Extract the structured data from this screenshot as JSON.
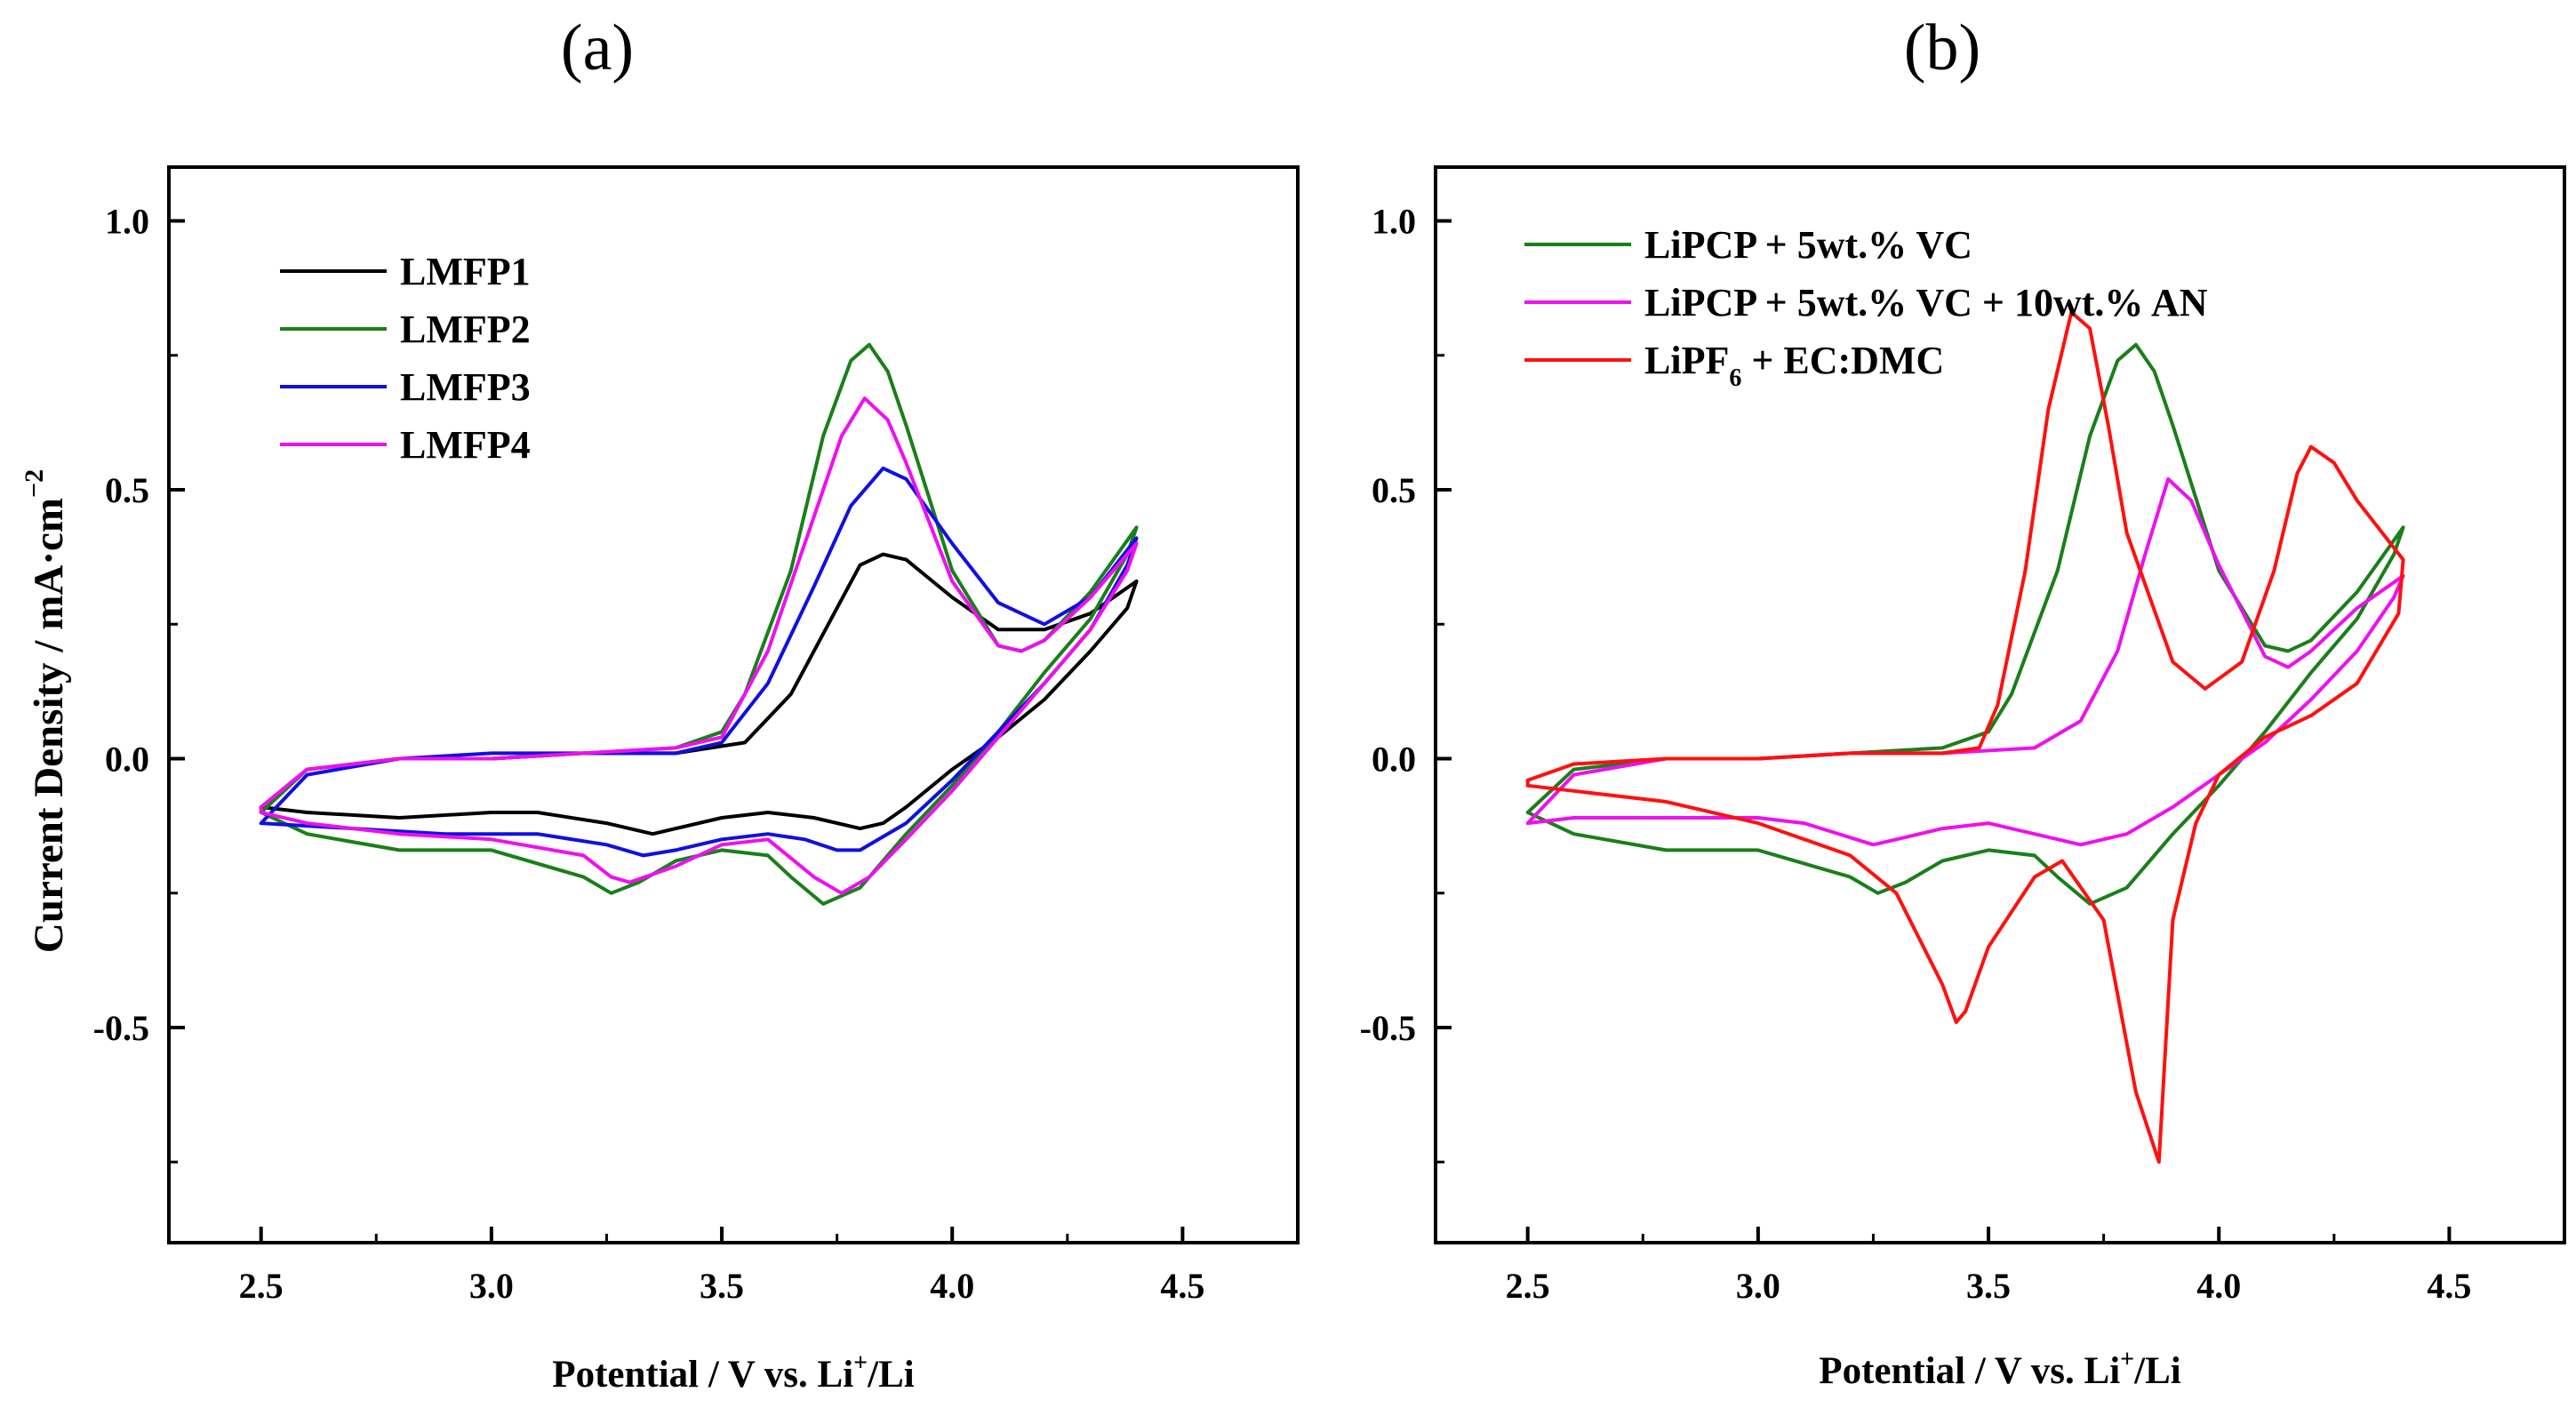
{
  "figure": {
    "ylabel": "Current Density  / mA·cm",
    "ylabel_sup": "−2"
  },
  "chart_data": [
    {
      "type": "line",
      "panel_label": "(a)",
      "xlabel_parts": [
        "Potential / V vs. Li",
        "+",
        "/Li"
      ],
      "xlim": [
        2.3,
        4.75
      ],
      "ylim": [
        -0.9,
        1.1
      ],
      "xticks": [
        2.5,
        3.0,
        3.5,
        4.0,
        4.5
      ],
      "xtick_labels": [
        "2.5",
        "3.0",
        "3.5",
        "4.0",
        "4.5"
      ],
      "yticks": [
        -0.5,
        0.0,
        0.5,
        1.0
      ],
      "ytick_labels": [
        "-0.5",
        "0.0",
        "0.5",
        "1.0"
      ],
      "legend_position": "top-left",
      "series": [
        {
          "name": "LMFP1",
          "color": "#000000",
          "x": [
            2.5,
            2.6,
            2.8,
            3.0,
            3.2,
            3.4,
            3.55,
            3.65,
            3.75,
            3.8,
            3.85,
            3.9,
            4.0,
            4.1,
            4.2,
            4.3,
            4.4,
            4.38,
            4.3,
            4.2,
            4.1,
            4.0,
            3.9,
            3.85,
            3.8,
            3.7,
            3.6,
            3.5,
            3.4,
            3.35,
            3.25,
            3.1,
            3.0,
            2.8,
            2.6,
            2.5
          ],
          "y": [
            -0.09,
            -0.02,
            0.0,
            0.0,
            0.01,
            0.01,
            0.03,
            0.12,
            0.28,
            0.36,
            0.38,
            0.37,
            0.3,
            0.24,
            0.24,
            0.27,
            0.33,
            0.28,
            0.2,
            0.11,
            0.04,
            -0.02,
            -0.09,
            -0.12,
            -0.13,
            -0.11,
            -0.1,
            -0.11,
            -0.13,
            -0.14,
            -0.12,
            -0.1,
            -0.1,
            -0.11,
            -0.1,
            -0.09
          ]
        },
        {
          "name": "LMFP2",
          "color": "#1a7f1a",
          "x": [
            2.5,
            2.6,
            2.8,
            3.0,
            3.2,
            3.4,
            3.5,
            3.55,
            3.65,
            3.72,
            3.78,
            3.82,
            3.86,
            3.9,
            4.0,
            4.1,
            4.15,
            4.2,
            4.3,
            4.4,
            4.38,
            4.3,
            4.2,
            4.1,
            4.0,
            3.9,
            3.8,
            3.72,
            3.65,
            3.6,
            3.5,
            3.4,
            3.32,
            3.26,
            3.2,
            3.0,
            2.8,
            2.6,
            2.5
          ],
          "y": [
            -0.1,
            -0.02,
            0.0,
            0.0,
            0.01,
            0.02,
            0.05,
            0.12,
            0.35,
            0.6,
            0.74,
            0.77,
            0.72,
            0.62,
            0.35,
            0.21,
            0.2,
            0.22,
            0.31,
            0.43,
            0.38,
            0.26,
            0.16,
            0.05,
            -0.05,
            -0.14,
            -0.24,
            -0.27,
            -0.22,
            -0.18,
            -0.17,
            -0.19,
            -0.23,
            -0.25,
            -0.22,
            -0.17,
            -0.17,
            -0.14,
            -0.1
          ]
        },
        {
          "name": "LMFP3",
          "color": "#1010e0",
          "x": [
            2.5,
            2.6,
            2.8,
            3.0,
            3.2,
            3.4,
            3.5,
            3.6,
            3.7,
            3.78,
            3.85,
            3.9,
            4.0,
            4.1,
            4.2,
            4.3,
            4.4,
            4.38,
            4.3,
            4.2,
            4.1,
            4.0,
            3.9,
            3.8,
            3.75,
            3.68,
            3.6,
            3.5,
            3.4,
            3.33,
            3.25,
            3.1,
            2.9,
            2.7,
            2.5
          ],
          "y": [
            -0.12,
            -0.03,
            0.0,
            0.01,
            0.01,
            0.01,
            0.03,
            0.14,
            0.32,
            0.47,
            0.54,
            0.52,
            0.4,
            0.29,
            0.25,
            0.3,
            0.41,
            0.36,
            0.24,
            0.14,
            0.05,
            -0.04,
            -0.12,
            -0.17,
            -0.17,
            -0.15,
            -0.14,
            -0.15,
            -0.17,
            -0.18,
            -0.16,
            -0.14,
            -0.14,
            -0.13,
            -0.12
          ]
        },
        {
          "name": "LMFP4",
          "color": "#ee10ee",
          "x": [
            2.5,
            2.6,
            2.8,
            3.0,
            3.2,
            3.4,
            3.5,
            3.6,
            3.7,
            3.76,
            3.81,
            3.86,
            3.9,
            4.0,
            4.1,
            4.15,
            4.2,
            4.3,
            4.4,
            4.38,
            4.3,
            4.2,
            4.1,
            4.0,
            3.9,
            3.82,
            3.76,
            3.7,
            3.6,
            3.5,
            3.4,
            3.3,
            3.26,
            3.2,
            3.0,
            2.8,
            2.6,
            2.5
          ],
          "y": [
            -0.09,
            -0.02,
            0.0,
            0.0,
            0.01,
            0.02,
            0.04,
            0.2,
            0.45,
            0.6,
            0.67,
            0.63,
            0.55,
            0.33,
            0.21,
            0.2,
            0.22,
            0.3,
            0.4,
            0.35,
            0.24,
            0.14,
            0.04,
            -0.06,
            -0.15,
            -0.22,
            -0.25,
            -0.22,
            -0.15,
            -0.16,
            -0.2,
            -0.23,
            -0.22,
            -0.18,
            -0.15,
            -0.14,
            -0.12,
            -0.1
          ]
        }
      ]
    },
    {
      "type": "line",
      "panel_label": "(b)",
      "xlabel_parts": [
        "Potential / V vs. Li",
        "+",
        "/Li"
      ],
      "xlim": [
        2.3,
        4.75
      ],
      "ylim": [
        -0.9,
        1.1
      ],
      "xticks": [
        2.5,
        3.0,
        3.5,
        4.0,
        4.5
      ],
      "xtick_labels": [
        "2.5",
        "3.0",
        "3.5",
        "4.0",
        "4.5"
      ],
      "yticks": [
        -0.5,
        0.0,
        0.5,
        1.0
      ],
      "ytick_labels": [
        "-0.5",
        "0.0",
        "0.5",
        "1.0"
      ],
      "legend_position": "top-left",
      "series": [
        {
          "name": "LiPCP + 5wt.% VC",
          "legend_parts": [
            "LiPCP + 5wt.% VC"
          ],
          "color": "#1a7f1a",
          "x": [
            2.5,
            2.6,
            2.8,
            3.0,
            3.2,
            3.4,
            3.5,
            3.55,
            3.65,
            3.72,
            3.78,
            3.82,
            3.86,
            3.9,
            4.0,
            4.1,
            4.15,
            4.2,
            4.3,
            4.4,
            4.38,
            4.3,
            4.2,
            4.1,
            4.0,
            3.9,
            3.8,
            3.72,
            3.65,
            3.6,
            3.5,
            3.4,
            3.32,
            3.26,
            3.2,
            3.0,
            2.8,
            2.6,
            2.5
          ],
          "y": [
            -0.1,
            -0.02,
            0.0,
            0.0,
            0.01,
            0.02,
            0.05,
            0.12,
            0.35,
            0.6,
            0.74,
            0.77,
            0.72,
            0.62,
            0.35,
            0.21,
            0.2,
            0.22,
            0.31,
            0.43,
            0.38,
            0.26,
            0.16,
            0.05,
            -0.05,
            -0.14,
            -0.24,
            -0.27,
            -0.22,
            -0.18,
            -0.17,
            -0.19,
            -0.23,
            -0.25,
            -0.22,
            -0.17,
            -0.17,
            -0.14,
            -0.1
          ]
        },
        {
          "name": "LiPCP + 5wt.% VC + 10wt.% AN",
          "legend_parts": [
            "LiPCP + 5wt.% VC + 10wt.% AN"
          ],
          "color": "#ee10ee",
          "x": [
            2.5,
            2.6,
            2.8,
            3.0,
            3.2,
            3.4,
            3.6,
            3.7,
            3.78,
            3.84,
            3.89,
            3.94,
            4.0,
            4.1,
            4.15,
            4.2,
            4.3,
            4.4,
            4.38,
            4.3,
            4.2,
            4.1,
            4.0,
            3.9,
            3.8,
            3.7,
            3.6,
            3.5,
            3.4,
            3.3,
            3.25,
            3.1,
            3.0,
            2.8,
            2.6,
            2.5
          ],
          "y": [
            -0.12,
            -0.03,
            0.0,
            0.0,
            0.01,
            0.01,
            0.02,
            0.07,
            0.2,
            0.38,
            0.52,
            0.48,
            0.36,
            0.19,
            0.17,
            0.2,
            0.28,
            0.34,
            0.3,
            0.2,
            0.11,
            0.03,
            -0.03,
            -0.09,
            -0.14,
            -0.16,
            -0.14,
            -0.12,
            -0.13,
            -0.15,
            -0.16,
            -0.12,
            -0.11,
            -0.11,
            -0.11,
            -0.12
          ]
        },
        {
          "name": "LiPF6 + EC:DMC",
          "legend_parts": [
            "LiPF",
            "6",
            " + EC:DMC"
          ],
          "color": "#ff1010",
          "x": [
            2.5,
            2.6,
            2.8,
            3.0,
            3.2,
            3.4,
            3.48,
            3.52,
            3.58,
            3.63,
            3.68,
            3.72,
            3.76,
            3.8,
            3.9,
            3.97,
            4.05,
            4.12,
            4.17,
            4.2,
            4.25,
            4.3,
            4.4,
            4.39,
            4.3,
            4.2,
            4.1,
            4.0,
            3.95,
            3.9,
            3.87,
            3.82,
            3.75,
            3.66,
            3.6,
            3.5,
            3.45,
            3.43,
            3.4,
            3.3,
            3.2,
            3.0,
            2.8,
            2.6,
            2.5
          ],
          "y": [
            -0.04,
            -0.01,
            0.0,
            0.0,
            0.01,
            0.01,
            0.02,
            0.1,
            0.35,
            0.65,
            0.83,
            0.8,
            0.62,
            0.42,
            0.18,
            0.13,
            0.18,
            0.35,
            0.53,
            0.58,
            0.55,
            0.48,
            0.37,
            0.27,
            0.14,
            0.08,
            0.04,
            -0.03,
            -0.12,
            -0.3,
            -0.75,
            -0.62,
            -0.3,
            -0.19,
            -0.22,
            -0.35,
            -0.47,
            -0.49,
            -0.42,
            -0.25,
            -0.18,
            -0.12,
            -0.08,
            -0.06,
            -0.05
          ]
        }
      ]
    }
  ]
}
